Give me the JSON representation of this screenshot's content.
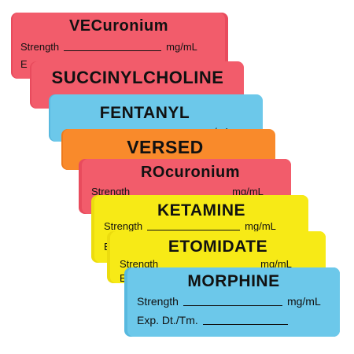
{
  "colors": {
    "red": "#f25c6b",
    "red_back": "#e84b5d",
    "blue": "#6cc8ea",
    "blue_back": "#58b9df",
    "orange": "#f98a2b",
    "orange_back": "#ee7a1c",
    "yellow": "#f7ea16",
    "yellow_back": "#ecdc0e"
  },
  "labels": [
    {
      "drug": "VECuronium",
      "strength": "Strength",
      "unit": "mg/mL",
      "exp": "E"
    },
    {
      "drug": "SUCCINYLCHOLINE"
    },
    {
      "drug": "FENTANYL",
      "unit": "mg/mL"
    },
    {
      "drug": "VERSED"
    },
    {
      "drug": "ROcuronium",
      "strength": "Strength",
      "unit": "mg/mL"
    },
    {
      "drug": "KETAMINE",
      "strength": "Strength",
      "unit": "mg/mL",
      "exp": "E"
    },
    {
      "drug": "ETOMIDATE",
      "strength": "Strength",
      "unit": "mg/mL",
      "exp": "E"
    },
    {
      "drug": "MORPHINE",
      "strength": "Strength",
      "unit": "mg/mL",
      "exp": "Exp. Dt./Tm."
    }
  ]
}
